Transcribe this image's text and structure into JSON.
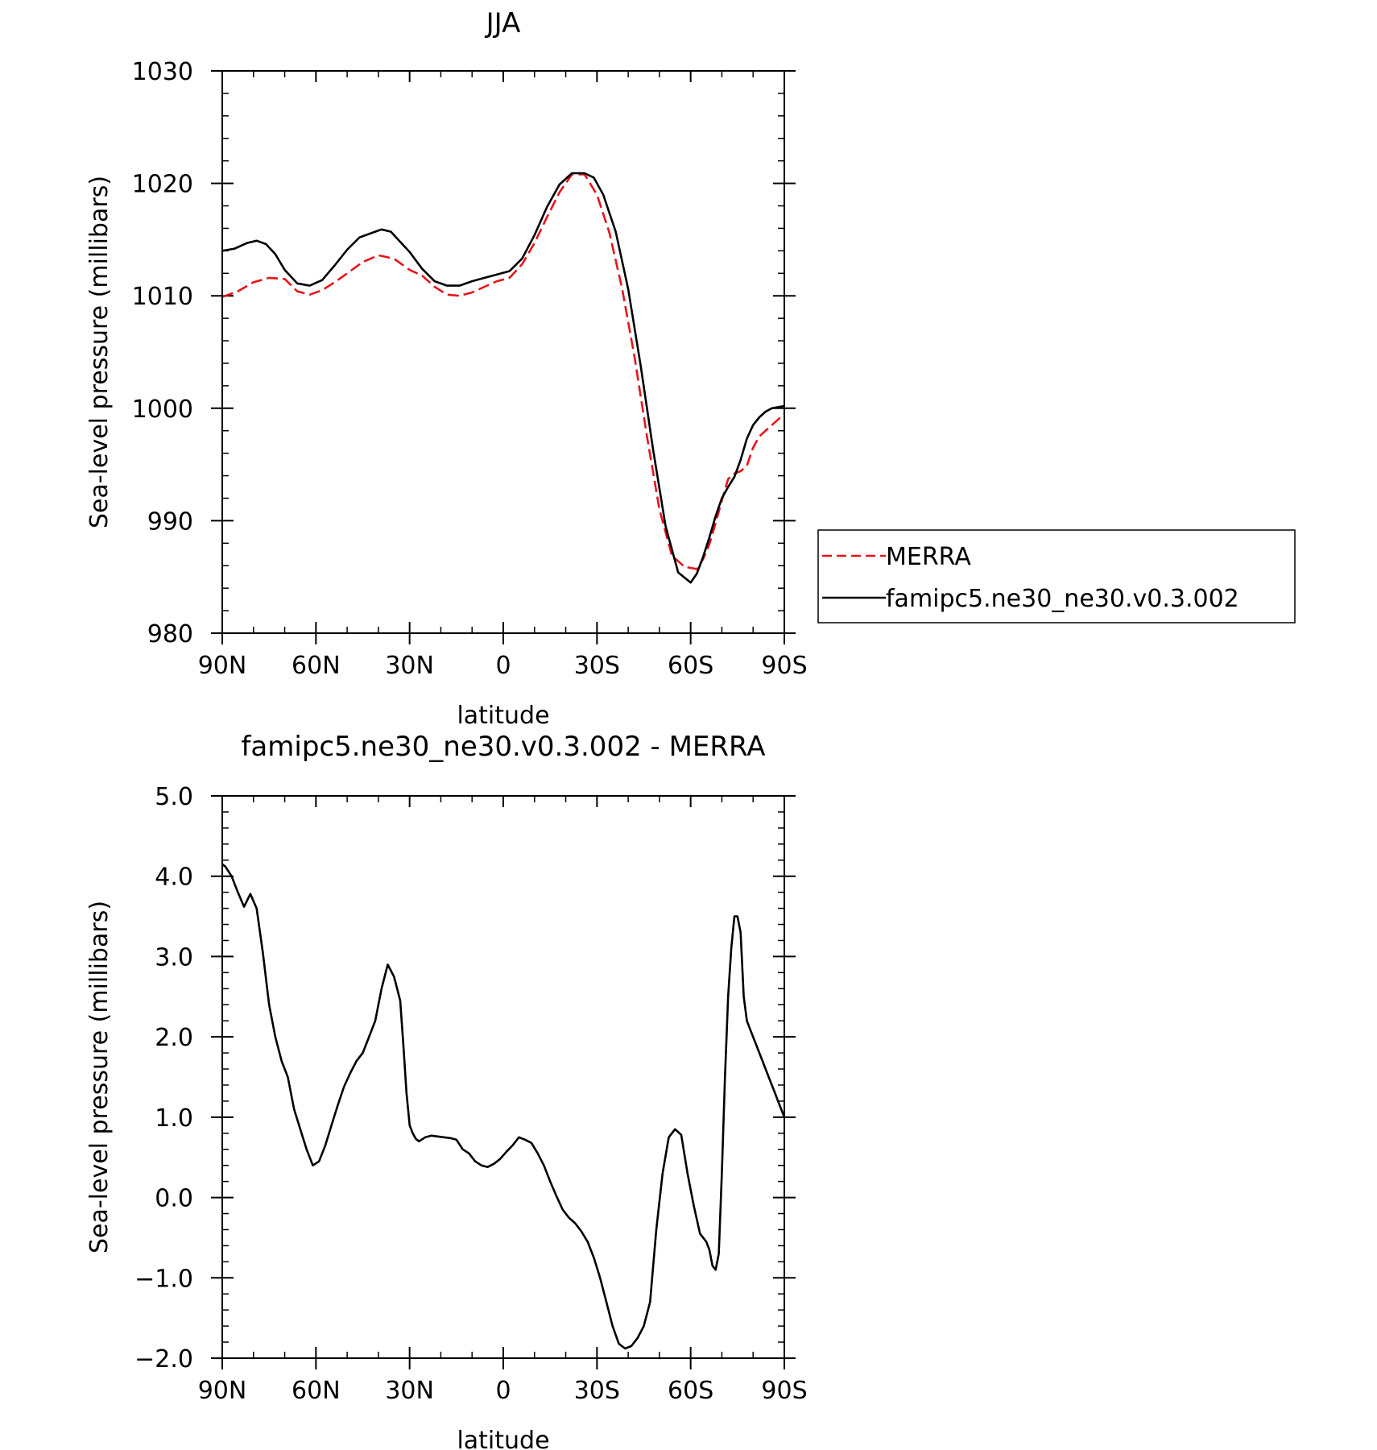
{
  "chart_data": [
    {
      "type": "line",
      "title": "JJA",
      "xlabel": "latitude",
      "ylabel": "Sea-level pressure (millibars)",
      "xlim": [
        90,
        -90
      ],
      "ylim": [
        980,
        1030
      ],
      "x_ticks": [
        90,
        60,
        30,
        0,
        -30,
        -60,
        -90
      ],
      "x_tick_labels": [
        "90N",
        "60N",
        "30N",
        "0",
        "30S",
        "60S",
        "90S"
      ],
      "y_ticks": [
        980,
        990,
        1000,
        1010,
        1020,
        1030
      ],
      "y_tick_labels": [
        "980",
        "990",
        "1000",
        "1010",
        "1020",
        "1030"
      ],
      "legend": {
        "placement": "right, outside plot",
        "entries": [
          "MERRA",
          "famipc5.ne30_ne30.v0.3.002"
        ]
      },
      "series": [
        {
          "name": "MERRA",
          "color": "#e8141c",
          "dash": "dashed",
          "x": [
            90,
            85,
            80,
            75,
            70,
            66,
            62,
            58,
            54,
            50,
            45,
            40,
            35,
            30,
            26,
            22,
            18,
            14,
            10,
            6,
            2,
            -2,
            -6,
            -10,
            -14,
            -18,
            -22,
            -26,
            -30,
            -34,
            -38,
            -42,
            -46,
            -50,
            -54,
            -58,
            -62,
            -64,
            -66,
            -68,
            -70,
            -72,
            -74,
            -76,
            -78,
            -80,
            -82,
            -84,
            -86,
            -88,
            -90
          ],
          "y": [
            1009.9,
            1010.4,
            1011.2,
            1011.6,
            1011.5,
            1010.4,
            1010.1,
            1010.5,
            1011.2,
            1012.0,
            1013.0,
            1013.6,
            1013.3,
            1012.3,
            1011.8,
            1010.8,
            1010.1,
            1010.0,
            1010.3,
            1010.8,
            1011.3,
            1011.6,
            1012.8,
            1014.7,
            1017.0,
            1019.2,
            1020.8,
            1020.8,
            1019.0,
            1015.6,
            1010.7,
            1004.6,
            997.5,
            991.0,
            986.9,
            985.9,
            985.7,
            986.6,
            987.9,
            989.8,
            991.8,
            993.7,
            994.2,
            994.4,
            994.9,
            996.5,
            997.5,
            998.0,
            998.5,
            999.0,
            999.5
          ]
        },
        {
          "name": "famipc5.ne30_ne30.v0.3.002",
          "color": "#000000",
          "dash": "solid",
          "x": [
            90,
            86,
            82,
            79,
            76,
            73,
            70,
            66,
            62,
            58,
            54,
            50,
            46,
            42,
            39,
            36,
            33,
            30,
            26,
            22,
            18,
            14,
            10,
            6,
            2,
            -2,
            -6,
            -10,
            -14,
            -18,
            -22,
            -26,
            -29,
            -32,
            -36,
            -40,
            -44,
            -48,
            -52,
            -56,
            -60,
            -62,
            -64,
            -66,
            -68,
            -70,
            -72,
            -74,
            -76,
            -78,
            -80,
            -82,
            -84,
            -86,
            -88,
            -90
          ],
          "y": [
            1014.0,
            1014.2,
            1014.7,
            1014.9,
            1014.6,
            1013.7,
            1012.3,
            1011.1,
            1010.9,
            1011.4,
            1012.7,
            1014.1,
            1015.2,
            1015.6,
            1015.9,
            1015.7,
            1014.8,
            1013.9,
            1012.4,
            1011.3,
            1010.9,
            1010.9,
            1011.3,
            1011.6,
            1011.9,
            1012.2,
            1013.3,
            1015.4,
            1017.9,
            1019.9,
            1020.9,
            1020.9,
            1020.5,
            1019.0,
            1015.7,
            1010.6,
            1003.8,
            996.3,
            989.5,
            985.4,
            984.5,
            985.3,
            986.8,
            988.5,
            990.4,
            992.0,
            993.0,
            993.9,
            995.4,
            997.3,
            998.5,
            999.2,
            999.7,
            1000.0,
            1000.1,
            1000.2
          ]
        }
      ]
    },
    {
      "type": "line",
      "title": "famipc5.ne30_ne30.v0.3.002 - MERRA",
      "xlabel": "latitude",
      "ylabel": "Sea-level pressure (millibars)",
      "xlim": [
        90,
        -90
      ],
      "ylim": [
        -2.0,
        5.0
      ],
      "x_ticks": [
        90,
        60,
        30,
        0,
        -30,
        -60,
        -90
      ],
      "x_tick_labels": [
        "90N",
        "60N",
        "30N",
        "0",
        "30S",
        "60S",
        "90S"
      ],
      "y_ticks": [
        -2.0,
        -1.0,
        0.0,
        1.0,
        2.0,
        3.0,
        4.0,
        5.0
      ],
      "y_tick_labels": [
        "−2.0",
        "−1.0",
        "0.0",
        "1.0",
        "2.0",
        "3.0",
        "4.0",
        "5.0"
      ],
      "series": [
        {
          "color": "#000000",
          "dash": "solid",
          "x": [
            90,
            89,
            87,
            85,
            83,
            81,
            79,
            77,
            75,
            73,
            71,
            69,
            67,
            65,
            63,
            61,
            59,
            57,
            55,
            53,
            51,
            49,
            47,
            45,
            43,
            41,
            39,
            37,
            35,
            34,
            33,
            32,
            31,
            30,
            29,
            28,
            27,
            25,
            23,
            21,
            19,
            17,
            15,
            13,
            11,
            9,
            7,
            5,
            3,
            1,
            -1,
            -3,
            -5,
            -7,
            -9,
            -11,
            -13,
            -15,
            -17,
            -19,
            -21,
            -23,
            -25,
            -27,
            -29,
            -31,
            -33,
            -35,
            -37,
            -39,
            -41,
            -43,
            -45,
            -47,
            -49,
            -51,
            -53,
            -55,
            -57,
            -59,
            -61,
            -63,
            -65,
            -66,
            -67,
            -68,
            -69,
            -70,
            -71,
            -72,
            -73,
            -74,
            -75,
            -76,
            -77,
            -78,
            -79,
            -80,
            -81,
            -82,
            -83,
            -84,
            -85,
            -86,
            -87,
            -88,
            -89,
            -90
          ],
          "y": [
            4.15,
            4.12,
            4.0,
            3.8,
            3.62,
            3.78,
            3.6,
            3.05,
            2.4,
            2.0,
            1.7,
            1.5,
            1.1,
            0.85,
            0.6,
            0.4,
            0.45,
            0.65,
            0.9,
            1.15,
            1.38,
            1.55,
            1.7,
            1.8,
            2.0,
            2.2,
            2.6,
            2.9,
            2.75,
            2.6,
            2.45,
            1.9,
            1.3,
            0.9,
            0.8,
            0.73,
            0.7,
            0.75,
            0.77,
            0.76,
            0.75,
            0.74,
            0.72,
            0.6,
            0.55,
            0.45,
            0.4,
            0.38,
            0.42,
            0.48,
            0.57,
            0.65,
            0.75,
            0.72,
            0.68,
            0.55,
            0.4,
            0.2,
            0.02,
            -0.15,
            -0.25,
            -0.32,
            -0.42,
            -0.55,
            -0.75,
            -1.0,
            -1.3,
            -1.6,
            -1.82,
            -1.88,
            -1.85,
            -1.75,
            -1.6,
            -1.3,
            -0.4,
            0.3,
            0.75,
            0.85,
            0.78,
            0.3,
            -0.1,
            -0.45,
            -0.55,
            -0.65,
            -0.85,
            -0.9,
            -0.7,
            0.3,
            1.5,
            2.5,
            3.1,
            3.5,
            3.5,
            3.3,
            2.5,
            2.2,
            2.1,
            2.0,
            1.9,
            1.8,
            1.7,
            1.6,
            1.5,
            1.4,
            1.3,
            1.2,
            1.1,
            1.0
          ]
        }
      ]
    }
  ]
}
